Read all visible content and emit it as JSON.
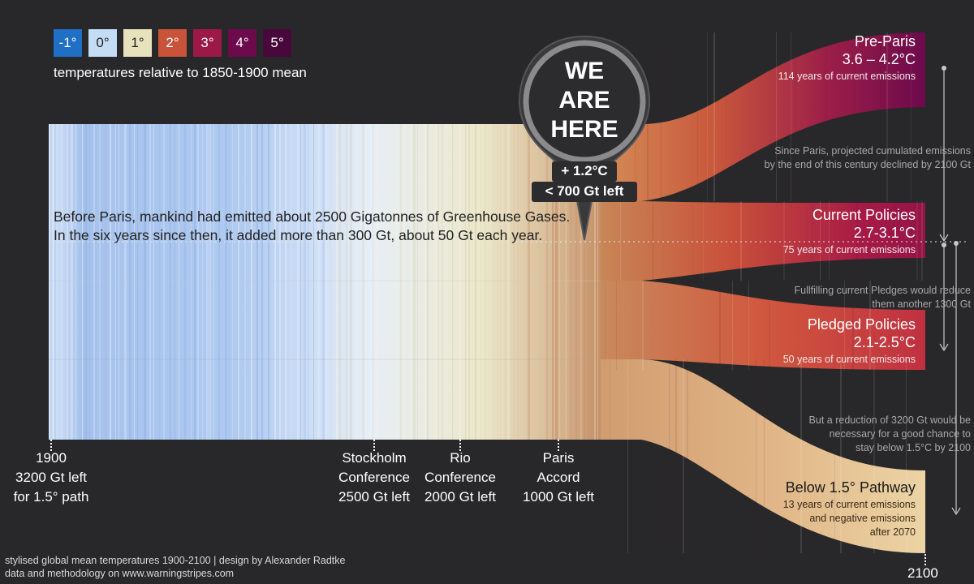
{
  "legend": {
    "items": [
      {
        "label": "-1°",
        "color": "#1f6fc4",
        "text_color": "#ffffff"
      },
      {
        "label": "0°",
        "color": "#c4dcf4",
        "text_color": "#222222"
      },
      {
        "label": "1°",
        "color": "#e8e2bc",
        "text_color": "#222222"
      },
      {
        "label": "2°",
        "color": "#c8523a",
        "text_color": "#ffffff"
      },
      {
        "label": "3°",
        "color": "#9c1846",
        "text_color": "#ffffff"
      },
      {
        "label": "4°",
        "color": "#6c0a4c",
        "text_color": "#ffffff"
      },
      {
        "label": "5°",
        "color": "#48083c",
        "text_color": "#ffffff"
      }
    ],
    "caption": "temperatures relative to 1850-1900 mean"
  },
  "intro": {
    "line1": "Before Paris, mankind had emitted about 2500 Gigatonnes of Greenhouse Gases.",
    "line2": "In the six years since then, it added more than 300 Gt, about 50 Gt each year."
  },
  "marker": {
    "line1": "WE",
    "line2": "ARE",
    "line3": "HERE",
    "temp": "+ 1.2°C",
    "budget": "< 700 Gt left"
  },
  "timeline": [
    {
      "line1": "1900",
      "line2": "3200 Gt left",
      "line3": "for 1.5° path"
    },
    {
      "line1": "Stockholm",
      "line2": "Conference",
      "line3": "2500 Gt left"
    },
    {
      "line1": "Rio",
      "line2": "Conference",
      "line3": "2000 Gt left"
    },
    {
      "line1": "Paris",
      "line2": "Accord",
      "line3": "1000 Gt left"
    }
  ],
  "end_year": "2100",
  "scenarios": [
    {
      "name": "Pre-Paris",
      "range": "3.6 – 4.2°C",
      "years": "114 years of current emissions",
      "color": "#700a4e"
    },
    {
      "name": "Current Policies",
      "range": "2.7-3.1°C",
      "years": "75 years of current emissions",
      "color": "#a01448"
    },
    {
      "name": "Pledged Policies",
      "range": "2.1-2.5°C",
      "years": "50 years of current emissions",
      "color": "#c02c3c"
    },
    {
      "name": "Below 1.5° Pathway",
      "years_line1": "13 years of current emissions",
      "years_line2": "and negative emissions",
      "years_line3": "after 2070",
      "color": "#e8cc98"
    }
  ],
  "notes": {
    "paris": {
      "line1": "Since Paris, projected cumulated emissions",
      "line2": "by the end of this century declined by 2100 Gt"
    },
    "pledges": {
      "line1": "Fullfilling current Pledges would reduce",
      "line2": "them another 1300 Gt"
    },
    "reduction": {
      "line1": "But a reduction of 3200 Gt would be",
      "line2": "necessary for a good chance to",
      "line3": "stay below  1.5°C by 2100"
    }
  },
  "footer": {
    "line1": "stylised global mean temperatures 1900-2100 | design by Alexander Radtke",
    "line2": "data and methodology on www.warningstripes.com"
  }
}
